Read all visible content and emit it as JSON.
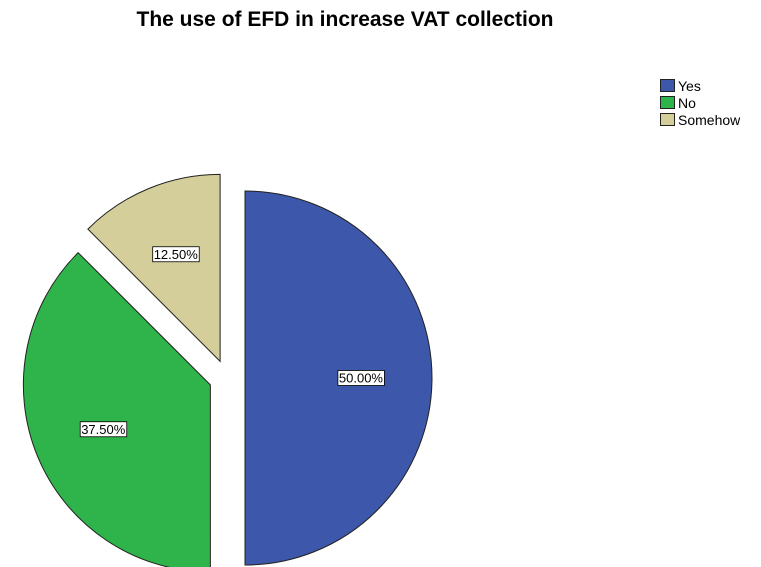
{
  "chart_data": {
    "type": "pie",
    "title": "The use of EFD in increase VAT collection",
    "categories": [
      "Yes",
      "No",
      "Somehow"
    ],
    "values": [
      50.0,
      37.5,
      12.5
    ],
    "labels": [
      "50.00%",
      "37.50%",
      "12.50%"
    ],
    "colors": [
      "#3D57AA",
      "#2EB44A",
      "#D4CE9A"
    ],
    "exploded": true,
    "legend_position": "top-right"
  }
}
